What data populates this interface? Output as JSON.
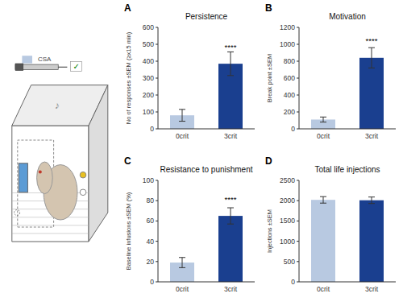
{
  "chart_data": [
    {
      "type": "bar",
      "title": "Persistence",
      "ylabel": "No of responses ±SEM (≥x15 min)",
      "categories": [
        "0crit",
        "3crit"
      ],
      "values": [
        80,
        385
      ],
      "errors": [
        35,
        70
      ],
      "colors": [
        "#b8c9e1",
        "#1a3f8f"
      ],
      "ylim": [
        0,
        600
      ],
      "yticks": [
        0,
        100,
        200,
        300,
        400,
        500,
        600
      ],
      "grid": false,
      "annotations": [
        {
          "text": "A"
        },
        {
          "text": "****",
          "x": "3crit",
          "y": 460
        }
      ]
    },
    {
      "type": "bar",
      "title": "Motivation",
      "ylabel": "Break point ±SEM",
      "categories": [
        "0crit",
        "3crit"
      ],
      "values": [
        110,
        840
      ],
      "errors": [
        30,
        120
      ],
      "colors": [
        "#b8c9e1",
        "#1a3f8f"
      ],
      "ylim": [
        0,
        1200
      ],
      "yticks": [
        0,
        200,
        400,
        600,
        800,
        1000,
        1200
      ],
      "grid": false,
      "annotations": [
        {
          "text": "B"
        },
        {
          "text": "****",
          "x": "3crit",
          "y": 1000
        }
      ]
    },
    {
      "type": "bar",
      "title": "Resistance to punishment",
      "ylabel": "Baseline infusions ±SEM (%)",
      "categories": [
        "0crit",
        "3crit"
      ],
      "values": [
        19,
        65
      ],
      "errors": [
        5,
        8
      ],
      "colors": [
        "#b8c9e1",
        "#1a3f8f"
      ],
      "ylim": [
        0,
        100
      ],
      "yticks": [
        0,
        20,
        40,
        60,
        80,
        100
      ],
      "grid": false,
      "annotations": [
        {
          "text": "C"
        },
        {
          "text": "****",
          "x": "3crit",
          "y": 78
        }
      ]
    },
    {
      "type": "bar",
      "title": "Total life injections",
      "ylabel": "Injections ±SEM",
      "categories": [
        "0crit",
        "3crit"
      ],
      "values": [
        2020,
        2010
      ],
      "errors": [
        80,
        80
      ],
      "colors": [
        "#b8c9e1",
        "#1a3f8f"
      ],
      "ylim": [
        0,
        2500
      ],
      "yticks": [
        0,
        500,
        1000,
        1500,
        2000,
        2500
      ],
      "grid": false,
      "annotations": [
        {
          "text": "D"
        }
      ]
    },
    {
      "type": "illustration",
      "annotations": [
        "♪",
        "CSA",
        "✓"
      ]
    }
  ]
}
